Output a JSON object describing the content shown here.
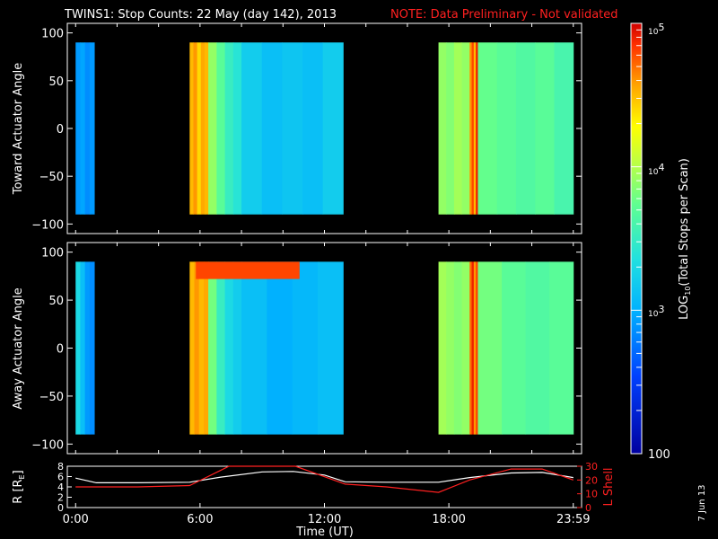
{
  "header": {
    "title": "TWINS1: Stop Counts: 22 May (day 142), 2013",
    "note": "NOTE: Data Preliminary - Not validated"
  },
  "footer": {
    "date_stamp": "7 Jun 13"
  },
  "colors": {
    "background": "#000000",
    "axes": "#ffffff",
    "note": "#ff2020",
    "lshell": "#ff2020",
    "radius": "#ffffff"
  },
  "chart_data": [
    {
      "type": "heatmap",
      "panel": "toward",
      "ylabel": "Toward Actuator Angle",
      "ylim": [
        -110,
        110
      ],
      "yticks": [
        -100,
        -50,
        0,
        50,
        100
      ],
      "ytick_labels": [
        "−100",
        "−50",
        "0",
        "50",
        "100"
      ],
      "xlim_hours": [
        -0.4,
        24.4
      ],
      "data_range_deg": [
        -90,
        90
      ],
      "segments": [
        {
          "start_h": 0.0,
          "end_h": 0.9,
          "log10_counts": [
            2.9,
            2.95,
            2.85,
            2.9
          ]
        },
        {
          "start_h": 5.5,
          "end_h": 6.4,
          "log10_counts": [
            4.5,
            4.6,
            4.4,
            4.55,
            4.5
          ]
        },
        {
          "start_h": 6.4,
          "end_h": 8.0,
          "log10_counts": [
            3.9,
            3.7,
            3.5,
            3.4
          ]
        },
        {
          "start_h": 8.0,
          "end_h": 12.9,
          "log10_counts": [
            3.2,
            3.1,
            3.15,
            3.1,
            3.2
          ]
        },
        {
          "start_h": 17.5,
          "end_h": 19.0,
          "log10_counts": [
            3.9,
            3.85,
            3.95,
            3.9
          ]
        },
        {
          "start_h": 19.0,
          "end_h": 19.4,
          "log10_counts": [
            4.6,
            4.8,
            4.5,
            4.9
          ]
        },
        {
          "start_h": 19.4,
          "end_h": 24.0,
          "log10_counts": [
            3.75,
            3.7,
            3.65,
            3.7,
            3.6
          ]
        }
      ]
    },
    {
      "type": "heatmap",
      "panel": "away",
      "ylabel": "Away Actuator Angle",
      "ylim": [
        -110,
        110
      ],
      "yticks": [
        -100,
        -50,
        0,
        50,
        100
      ],
      "ytick_labels": [
        "−100",
        "−50",
        "0",
        "50",
        "100"
      ],
      "xlim_hours": [
        -0.4,
        24.4
      ],
      "data_range_deg": [
        -90,
        90
      ],
      "xtick_labels": [
        "0:00",
        "6:00",
        "12:00",
        "18:00",
        "23:59"
      ],
      "segments": [
        {
          "start_h": 0.0,
          "end_h": 0.9,
          "log10_counts": [
            3.3,
            3.1,
            2.9,
            2.85
          ]
        },
        {
          "start_h": 5.5,
          "end_h": 6.4,
          "log10_counts": [
            4.5,
            4.6,
            4.5,
            4.55
          ]
        },
        {
          "start_h": 6.4,
          "end_h": 8.0,
          "log10_counts": [
            3.8,
            3.5,
            3.3,
            3.2
          ]
        },
        {
          "start_h": 8.0,
          "end_h": 12.9,
          "log10_counts": [
            3.1,
            3.0,
            3.05,
            3.1
          ]
        },
        {
          "start_h": 17.5,
          "end_h": 19.0,
          "log10_counts": [
            3.95,
            3.9,
            3.85,
            3.9
          ]
        },
        {
          "start_h": 19.0,
          "end_h": 19.4,
          "log10_counts": [
            4.7,
            4.9,
            4.6,
            4.8
          ]
        },
        {
          "start_h": 19.4,
          "end_h": 24.0,
          "log10_counts": [
            3.8,
            3.7,
            3.65,
            3.7
          ]
        }
      ],
      "hot_patch": {
        "start_h": 5.8,
        "end_h": 10.8,
        "angle_min": 72,
        "angle_max": 90,
        "log10_counts": 4.8
      }
    },
    {
      "type": "line",
      "panel": "ephemeris",
      "xlabel": "Time (UT)",
      "xlim_hours": [
        -0.4,
        24.4
      ],
      "xtick_labels": [
        "0:00",
        "6:00",
        "12:00",
        "18:00",
        "23:59"
      ],
      "ylabel_left": "R [RE]",
      "ylabel_left_base": "R [R",
      "ylabel_left_sub": "E",
      "ylabel_left_close": "]",
      "ylim_left": [
        0,
        8
      ],
      "yticks_left": [
        "0",
        "2",
        "4",
        "6",
        "8"
      ],
      "ylabel_right": "L Shell",
      "ylim_right": [
        0,
        30
      ],
      "yticks_right": [
        "0",
        "10",
        "20",
        "30"
      ],
      "series": [
        {
          "name": "R",
          "axis": "left",
          "x": [
            0,
            1,
            3,
            5.5,
            7,
            9,
            10.5,
            12,
            13,
            15,
            17.5,
            19,
            21,
            22.5,
            24
          ],
          "y": [
            5.7,
            4.8,
            4.8,
            4.9,
            5.9,
            6.9,
            7.0,
            6.3,
            5.0,
            4.9,
            4.9,
            5.8,
            6.7,
            6.8,
            5.8
          ]
        },
        {
          "name": "L Shell",
          "axis": "right",
          "x": [
            0,
            1,
            3,
            5.5,
            7.4,
            10.6,
            13,
            15,
            17.5,
            19,
            21,
            22.5,
            24
          ],
          "y": [
            15,
            15,
            15,
            16,
            30,
            30,
            17,
            15,
            11,
            20,
            28,
            28,
            20
          ]
        }
      ]
    },
    {
      "type": "colorbar",
      "label": "LOG10(Total Stops per Scan)",
      "label_prefix": "LOG",
      "label_sub": "10",
      "label_suffix": "(Total Stops per Scan)",
      "range_log10": [
        2,
        5
      ],
      "tick_labels": [
        "10",
        "5",
        "10",
        "4",
        "10",
        "3",
        "100"
      ],
      "ticks_log10": [
        5,
        4,
        3,
        2
      ]
    }
  ]
}
